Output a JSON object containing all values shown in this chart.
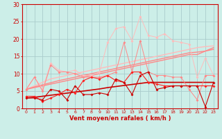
{
  "x": [
    0,
    1,
    2,
    3,
    4,
    5,
    6,
    7,
    8,
    9,
    10,
    11,
    12,
    13,
    14,
    15,
    16,
    17,
    18,
    19,
    20,
    21,
    22,
    23
  ],
  "line_pale_jagged": [
    5.5,
    9.0,
    5.5,
    13.0,
    11.0,
    10.5,
    11.0,
    9.5,
    9.5,
    10.5,
    19.0,
    23.0,
    23.5,
    19.5,
    26.5,
    21.0,
    20.5,
    21.5,
    19.5,
    19.0,
    18.5,
    9.0,
    14.5,
    9.5
  ],
  "line_pink_jagged": [
    5.5,
    9.0,
    5.0,
    12.5,
    10.5,
    10.5,
    10.0,
    9.0,
    9.0,
    9.0,
    9.5,
    10.5,
    19.0,
    10.5,
    19.5,
    10.5,
    9.5,
    9.5,
    9.0,
    9.0,
    5.5,
    2.5,
    9.5,
    9.5
  ],
  "line_red_jagged": [
    3.5,
    3.5,
    2.0,
    3.0,
    4.0,
    5.5,
    4.5,
    8.0,
    9.0,
    8.5,
    9.5,
    8.0,
    7.5,
    10.5,
    10.5,
    7.5,
    7.0,
    6.5,
    6.5,
    6.5,
    6.5,
    6.5,
    6.5,
    6.5
  ],
  "line_darkred_jagged": [
    3.0,
    3.0,
    2.5,
    5.5,
    5.0,
    2.5,
    6.5,
    4.0,
    4.0,
    4.5,
    4.0,
    8.5,
    7.5,
    4.0,
    9.5,
    10.5,
    5.5,
    6.0,
    6.5,
    6.5,
    6.5,
    6.5,
    0.5,
    7.5
  ],
  "trend_pale": [
    5.5,
    6.5,
    7.5,
    8.5,
    9.0,
    9.5,
    10.0,
    10.5,
    11.0,
    11.5,
    12.0,
    12.5,
    13.0,
    13.5,
    14.0,
    14.5,
    15.0,
    15.5,
    16.0,
    16.5,
    17.0,
    17.5,
    17.8,
    18.0
  ],
  "trend_pink2": [
    5.5,
    6.2,
    6.8,
    7.4,
    8.0,
    8.5,
    9.0,
    9.5,
    10.0,
    10.5,
    11.0,
    11.5,
    12.0,
    12.5,
    13.0,
    13.5,
    14.0,
    14.5,
    15.0,
    15.5,
    16.0,
    16.2,
    16.5,
    17.5
  ],
  "trend_pink1": [
    5.5,
    6.0,
    6.5,
    7.0,
    7.5,
    8.0,
    8.5,
    9.0,
    9.5,
    10.0,
    10.5,
    11.0,
    11.5,
    12.0,
    12.5,
    13.0,
    13.5,
    14.0,
    14.5,
    15.0,
    15.5,
    15.5,
    16.5,
    17.0
  ],
  "trend_darkred": [
    3.0,
    3.2,
    3.5,
    3.8,
    4.1,
    4.4,
    4.7,
    5.0,
    5.3,
    5.6,
    6.0,
    6.3,
    6.6,
    6.9,
    7.2,
    7.5,
    7.5,
    7.5,
    7.5,
    7.5,
    7.5,
    7.5,
    7.5,
    7.5
  ],
  "color_dark_red": "#cc0000",
  "color_red": "#ff2222",
  "color_pink": "#ff8888",
  "color_pale_pink": "#ffbbbb",
  "bg_color": "#cceee8",
  "grid_color": "#aacccc",
  "axis_color": "#cc0000",
  "xlabel": "Vent moyen/en rafales ( km/h )",
  "ylim": [
    0,
    30
  ],
  "xlim": [
    -0.5,
    23.5
  ],
  "yticks": [
    0,
    5,
    10,
    15,
    20,
    25,
    30
  ]
}
